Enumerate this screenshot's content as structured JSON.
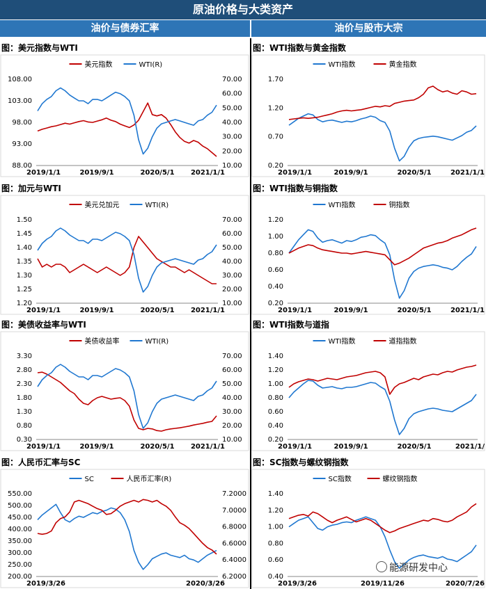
{
  "header": {
    "title": "原油价格与大类资产"
  },
  "sections": {
    "left": "油价与债券汇率",
    "right": "油价与股市大宗"
  },
  "watermark": "能源研发中心",
  "colors": {
    "blue": "#1f77d0",
    "red": "#c00000"
  },
  "chart_data": [
    {
      "id": "c1",
      "type": "line",
      "title": "图：美元指数与WTI",
      "x_ticks": [
        "2019/1/1",
        "2019/9/1",
        "2020/5/1",
        "2021/1/1"
      ],
      "y_left": {
        "ticks": [
          "88.00",
          "93.00",
          "98.00",
          "103.00",
          "108.00"
        ],
        "lim": [
          88,
          108
        ]
      },
      "y_right": {
        "ticks": [
          "10.00",
          "20.00",
          "30.00",
          "40.00",
          "50.00",
          "60.00",
          "70.00"
        ],
        "lim": [
          10,
          70
        ]
      },
      "legend": [
        {
          "name": "美元指数",
          "color": "#c00000"
        },
        {
          "name": "WTI(R)",
          "color": "#1f77d0"
        }
      ],
      "series": [
        {
          "name": "美元指数",
          "axis": "left",
          "color": "#c00000",
          "values": [
            96.0,
            96.4,
            96.7,
            97.0,
            97.2,
            97.5,
            97.8,
            97.6,
            97.9,
            98.2,
            98.4,
            98.1,
            98.0,
            98.3,
            98.6,
            99.0,
            98.5,
            98.2,
            97.6,
            97.2,
            96.8,
            97.4,
            98.5,
            100.5,
            102.5,
            99.8,
            99.5,
            99.8,
            99.0,
            97.5,
            95.8,
            94.5,
            93.6,
            93.2,
            93.8,
            93.4,
            92.5,
            91.9,
            91.0,
            90.1
          ]
        },
        {
          "name": "WTI(R)",
          "axis": "right",
          "color": "#1f77d0",
          "values": [
            48,
            53,
            56,
            58,
            62,
            64,
            62,
            59,
            57,
            55,
            55,
            53,
            56,
            56,
            55,
            57,
            59,
            61,
            60,
            58,
            55,
            45,
            28,
            18,
            22,
            30,
            36,
            39,
            40,
            41,
            42,
            41,
            40,
            39,
            38,
            41,
            42,
            45,
            47,
            52
          ]
        }
      ]
    },
    {
      "id": "c2",
      "type": "line",
      "title": "图：WTI指数与黄金指数",
      "x_ticks": [
        "2019/1/1",
        "2019/9/1",
        "2020/5/1",
        "2021/1/1"
      ],
      "y_left": {
        "ticks": [
          "0.20",
          "0.70",
          "1.20",
          "1.70"
        ],
        "lim": [
          0.2,
          1.7
        ]
      },
      "y_right": null,
      "legend": [
        {
          "name": "WTI指数",
          "color": "#1f77d0"
        },
        {
          "name": "黄金指数",
          "color": "#c00000"
        }
      ],
      "series": [
        {
          "name": "WTI指数",
          "axis": "left",
          "color": "#1f77d0",
          "values": [
            0.9,
            0.96,
            1.02,
            1.06,
            1.1,
            1.08,
            1.0,
            0.96,
            0.98,
            0.99,
            0.97,
            0.95,
            0.97,
            0.96,
            0.98,
            1.01,
            1.03,
            1.06,
            1.04,
            0.98,
            0.95,
            0.8,
            0.5,
            0.28,
            0.36,
            0.52,
            0.63,
            0.67,
            0.69,
            0.7,
            0.71,
            0.7,
            0.68,
            0.66,
            0.64,
            0.68,
            0.72,
            0.78,
            0.81,
            0.89
          ]
        },
        {
          "name": "黄金指数",
          "axis": "left",
          "color": "#c00000",
          "values": [
            1.0,
            1.01,
            1.02,
            1.03,
            1.02,
            1.03,
            1.04,
            1.06,
            1.08,
            1.1,
            1.13,
            1.15,
            1.16,
            1.15,
            1.16,
            1.17,
            1.19,
            1.21,
            1.23,
            1.22,
            1.24,
            1.23,
            1.28,
            1.3,
            1.32,
            1.33,
            1.34,
            1.38,
            1.44,
            1.55,
            1.58,
            1.52,
            1.48,
            1.5,
            1.46,
            1.44,
            1.5,
            1.48,
            1.44,
            1.45
          ]
        }
      ]
    },
    {
      "id": "c3",
      "type": "line",
      "title": "图：加元与WTI",
      "x_ticks": [
        "2019/1/1",
        "2019/9/1",
        "2020/5/1",
        "2021/1/1"
      ],
      "y_left": {
        "ticks": [
          "1.20",
          "1.25",
          "1.30",
          "1.35",
          "1.40",
          "1.45",
          "1.50"
        ],
        "lim": [
          1.2,
          1.5
        ]
      },
      "y_right": {
        "ticks": [
          "10.00",
          "20.00",
          "30.00",
          "40.00",
          "50.00",
          "60.00",
          "70.00"
        ],
        "lim": [
          10,
          70
        ]
      },
      "legend": [
        {
          "name": "美元兑加元",
          "color": "#c00000"
        },
        {
          "name": "WTI(R)",
          "color": "#1f77d0"
        }
      ],
      "series": [
        {
          "name": "美元兑加元",
          "axis": "left",
          "color": "#c00000",
          "values": [
            1.36,
            1.33,
            1.34,
            1.33,
            1.34,
            1.34,
            1.33,
            1.31,
            1.32,
            1.33,
            1.34,
            1.33,
            1.32,
            1.31,
            1.32,
            1.33,
            1.32,
            1.31,
            1.3,
            1.31,
            1.33,
            1.4,
            1.44,
            1.42,
            1.4,
            1.38,
            1.36,
            1.35,
            1.34,
            1.33,
            1.33,
            1.32,
            1.31,
            1.32,
            1.31,
            1.3,
            1.29,
            1.28,
            1.27,
            1.27
          ]
        },
        {
          "name": "WTI(R)",
          "axis": "right",
          "color": "#1f77d0",
          "values": [
            48,
            53,
            56,
            58,
            62,
            64,
            62,
            59,
            57,
            55,
            55,
            53,
            56,
            56,
            55,
            57,
            59,
            61,
            60,
            58,
            55,
            45,
            28,
            18,
            22,
            30,
            36,
            39,
            40,
            41,
            42,
            41,
            40,
            39,
            38,
            41,
            42,
            45,
            47,
            52
          ]
        }
      ]
    },
    {
      "id": "c4",
      "type": "line",
      "title": "图：WTI指数与铜指数",
      "x_ticks": [
        "2019/1/1",
        "2019/9/1",
        "2020/5/1",
        "2021/1/1"
      ],
      "y_left": {
        "ticks": [
          "0.20",
          "0.40",
          "0.60",
          "0.80",
          "1.00",
          "1.20"
        ],
        "lim": [
          0.2,
          1.2
        ]
      },
      "y_right": null,
      "legend": [
        {
          "name": "WTI指数",
          "color": "#1f77d0"
        },
        {
          "name": "铜指数",
          "color": "#c00000"
        }
      ],
      "series": [
        {
          "name": "WTI指数",
          "axis": "left",
          "color": "#1f77d0",
          "values": [
            0.8,
            0.88,
            0.96,
            1.02,
            1.08,
            1.06,
            0.98,
            0.93,
            0.95,
            0.96,
            0.94,
            0.92,
            0.95,
            0.94,
            0.96,
            0.99,
            1.0,
            1.02,
            1.01,
            0.96,
            0.92,
            0.78,
            0.48,
            0.26,
            0.35,
            0.5,
            0.58,
            0.62,
            0.64,
            0.65,
            0.66,
            0.65,
            0.63,
            0.62,
            0.6,
            0.64,
            0.7,
            0.75,
            0.79,
            0.88
          ]
        },
        {
          "name": "铜指数",
          "axis": "left",
          "color": "#c00000",
          "values": [
            0.8,
            0.83,
            0.86,
            0.88,
            0.9,
            0.89,
            0.86,
            0.84,
            0.83,
            0.82,
            0.81,
            0.8,
            0.8,
            0.79,
            0.8,
            0.81,
            0.82,
            0.81,
            0.8,
            0.79,
            0.78,
            0.72,
            0.66,
            0.68,
            0.71,
            0.74,
            0.78,
            0.82,
            0.86,
            0.88,
            0.9,
            0.92,
            0.93,
            0.95,
            0.98,
            1.0,
            1.02,
            1.05,
            1.08,
            1.1
          ]
        }
      ]
    },
    {
      "id": "c5",
      "type": "line",
      "title": "图：美债收益率与WTI",
      "x_ticks": [
        "2019/1/1",
        "2019/9/1",
        "2020/5/1",
        "2021/1/1"
      ],
      "y_left": {
        "ticks": [
          "0.30",
          "0.80",
          "1.30",
          "1.80",
          "2.30",
          "2.80",
          "3.30"
        ],
        "lim": [
          0.3,
          3.3
        ]
      },
      "y_right": {
        "ticks": [
          "10.00",
          "20.00",
          "30.00",
          "40.00",
          "50.00",
          "60.00",
          "70.00"
        ],
        "lim": [
          10,
          70
        ]
      },
      "legend": [
        {
          "name": "美债收益率",
          "color": "#c00000"
        },
        {
          "name": "WTI(R)",
          "color": "#1f77d0"
        }
      ],
      "series": [
        {
          "name": "美债收益率",
          "axis": "left",
          "color": "#c00000",
          "values": [
            2.7,
            2.72,
            2.65,
            2.55,
            2.45,
            2.35,
            2.2,
            2.05,
            1.95,
            1.75,
            1.6,
            1.55,
            1.7,
            1.8,
            1.85,
            1.8,
            1.75,
            1.78,
            1.8,
            1.7,
            1.5,
            1.0,
            0.7,
            0.65,
            0.7,
            0.68,
            0.62,
            0.6,
            0.65,
            0.68,
            0.7,
            0.72,
            0.75,
            0.78,
            0.82,
            0.85,
            0.88,
            0.92,
            0.95,
            1.15
          ]
        },
        {
          "name": "WTI(R)",
          "axis": "right",
          "color": "#1f77d0",
          "values": [
            48,
            53,
            56,
            58,
            62,
            64,
            62,
            59,
            57,
            55,
            55,
            53,
            56,
            56,
            55,
            57,
            59,
            61,
            60,
            58,
            55,
            45,
            28,
            18,
            22,
            30,
            36,
            39,
            40,
            41,
            42,
            41,
            40,
            39,
            38,
            41,
            42,
            45,
            47,
            52
          ]
        }
      ]
    },
    {
      "id": "c6",
      "type": "line",
      "title": "图：WTI指数与道指",
      "x_ticks": [
        "2019/1/1",
        "2019/9/1",
        "2020/5/1",
        "2021/1/"
      ],
      "y_left": {
        "ticks": [
          "0.20",
          "0.40",
          "0.60",
          "0.80",
          "1.00",
          "1.20",
          "1.40"
        ],
        "lim": [
          0.2,
          1.4
        ]
      },
      "y_right": null,
      "legend": [
        {
          "name": "WTI指数",
          "color": "#1f77d0"
        },
        {
          "name": "道指指数",
          "color": "#c00000"
        }
      ],
      "series": [
        {
          "name": "WTI指数",
          "axis": "left",
          "color": "#1f77d0",
          "values": [
            0.8,
            0.88,
            0.94,
            1.0,
            1.05,
            1.04,
            0.98,
            0.94,
            0.95,
            0.96,
            0.94,
            0.93,
            0.95,
            0.95,
            0.96,
            0.98,
            1.0,
            1.02,
            1.01,
            0.96,
            0.92,
            0.75,
            0.48,
            0.27,
            0.36,
            0.5,
            0.57,
            0.6,
            0.62,
            0.64,
            0.65,
            0.64,
            0.62,
            0.61,
            0.6,
            0.64,
            0.68,
            0.72,
            0.76,
            0.85
          ]
        },
        {
          "name": "道指指数",
          "axis": "left",
          "color": "#c00000",
          "values": [
            0.95,
            1.0,
            1.03,
            1.05,
            1.07,
            1.06,
            1.04,
            1.06,
            1.08,
            1.07,
            1.06,
            1.08,
            1.1,
            1.11,
            1.12,
            1.14,
            1.16,
            1.17,
            1.18,
            1.16,
            1.1,
            0.85,
            0.95,
            1.0,
            1.02,
            1.05,
            1.08,
            1.06,
            1.1,
            1.12,
            1.14,
            1.13,
            1.16,
            1.18,
            1.17,
            1.2,
            1.22,
            1.24,
            1.25,
            1.27
          ]
        }
      ]
    },
    {
      "id": "c7",
      "type": "line",
      "title": "图：人民币汇率与SC",
      "x_ticks": [
        "2019/3/26",
        "2020/3/26"
      ],
      "y_left": {
        "ticks": [
          "200.00",
          "250.00",
          "300.00",
          "350.00",
          "400.00",
          "450.00",
          "500.00",
          "550.00"
        ],
        "lim": [
          200,
          550
        ]
      },
      "y_right": {
        "ticks": [
          "6.2000",
          "6.4000",
          "6.6000",
          "6.8000",
          "7.0000",
          "7.2000"
        ],
        "lim": [
          6.2,
          7.2
        ]
      },
      "legend": [
        {
          "name": "SC",
          "color": "#1f77d0"
        },
        {
          "name": "人民币汇率(R)",
          "color": "#c00000"
        }
      ],
      "series": [
        {
          "name": "SC",
          "axis": "left",
          "color": "#1f77d0",
          "values": [
            440,
            460,
            475,
            490,
            505,
            470,
            440,
            430,
            445,
            455,
            450,
            460,
            470,
            465,
            475,
            480,
            490,
            485,
            470,
            440,
            390,
            310,
            260,
            230,
            250,
            275,
            285,
            295,
            300,
            290,
            285,
            280,
            290,
            275,
            270,
            260,
            275,
            290,
            300,
            310
          ]
        },
        {
          "name": "人民币汇率(R)",
          "axis": "right",
          "color": "#c00000",
          "values": [
            6.72,
            6.71,
            6.72,
            6.75,
            6.85,
            6.9,
            6.92,
            6.98,
            7.1,
            7.12,
            7.1,
            7.08,
            7.05,
            7.02,
            7.0,
            6.95,
            6.96,
            7.0,
            7.05,
            7.08,
            7.1,
            7.12,
            7.1,
            7.13,
            7.12,
            7.1,
            7.12,
            7.08,
            7.05,
            7.0,
            6.92,
            6.85,
            6.82,
            6.78,
            6.72,
            6.66,
            6.6,
            6.55,
            6.52,
            6.47
          ]
        }
      ]
    },
    {
      "id": "c8",
      "type": "line",
      "title": "图：SC指数与螺纹钢指数",
      "x_ticks": [
        "2019/3/26",
        "2019/11/26",
        "2020/7/26"
      ],
      "y_left": {
        "ticks": [
          "0.40",
          "0.60",
          "0.80",
          "1.00",
          "1.20",
          "1.40"
        ],
        "lim": [
          0.4,
          1.4
        ]
      },
      "y_right": null,
      "legend": [
        {
          "name": "SC指数",
          "color": "#1f77d0"
        },
        {
          "name": "螺纹钢指数",
          "color": "#c00000"
        }
      ],
      "series": [
        {
          "name": "SC指数",
          "axis": "left",
          "color": "#1f77d0",
          "values": [
            1.0,
            1.04,
            1.08,
            1.1,
            1.12,
            1.05,
            0.98,
            0.96,
            1.0,
            1.02,
            1.03,
            1.05,
            1.06,
            1.05,
            1.08,
            1.1,
            1.12,
            1.1,
            1.08,
            1.0,
            0.88,
            0.72,
            0.58,
            0.5,
            0.55,
            0.6,
            0.63,
            0.65,
            0.66,
            0.64,
            0.63,
            0.62,
            0.64,
            0.61,
            0.6,
            0.58,
            0.62,
            0.66,
            0.7,
            0.78
          ]
        },
        {
          "name": "螺纹钢指数",
          "axis": "left",
          "color": "#c00000",
          "values": [
            1.1,
            1.12,
            1.14,
            1.15,
            1.13,
            1.18,
            1.16,
            1.12,
            1.08,
            1.05,
            1.08,
            1.1,
            1.12,
            1.09,
            1.06,
            1.08,
            1.1,
            1.08,
            1.04,
            1.0,
            0.96,
            0.93,
            0.95,
            0.98,
            1.0,
            1.02,
            1.04,
            1.06,
            1.08,
            1.07,
            1.1,
            1.09,
            1.07,
            1.06,
            1.08,
            1.12,
            1.15,
            1.18,
            1.24,
            1.28
          ]
        }
      ]
    }
  ]
}
